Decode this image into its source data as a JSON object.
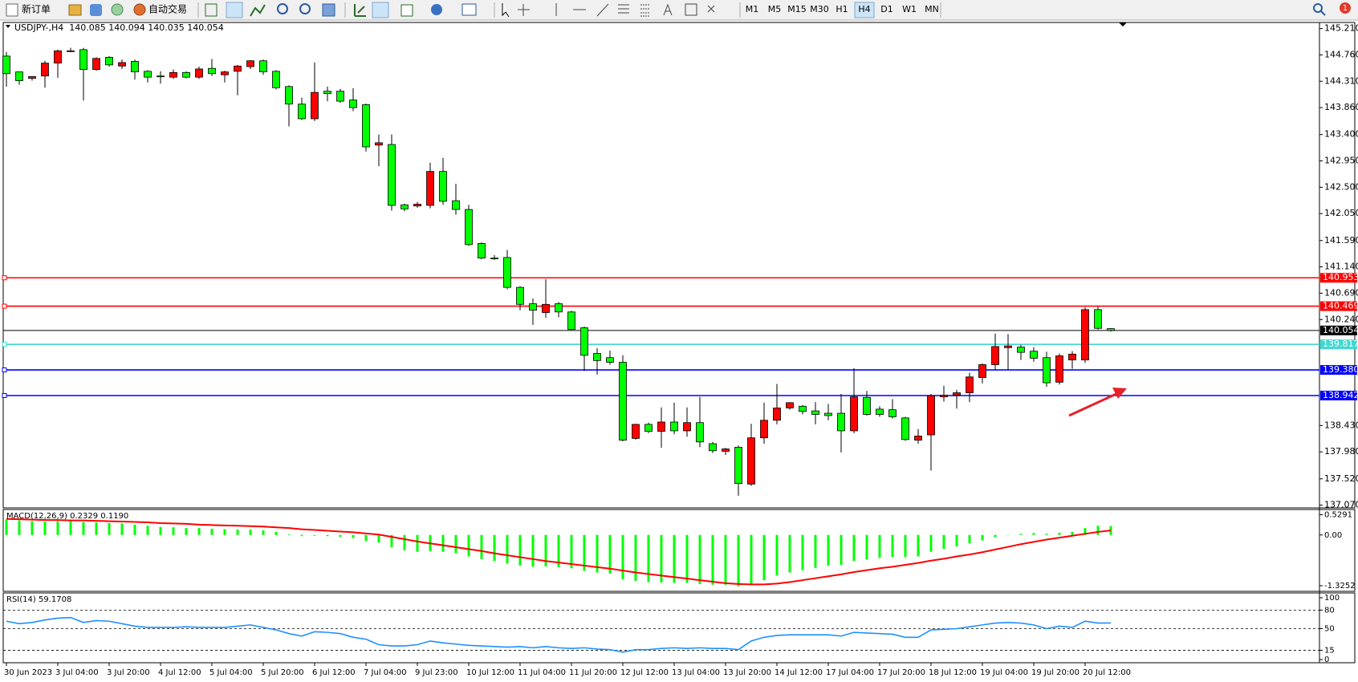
{
  "toolbar": {
    "new_order": "新订单",
    "auto_trading": "自动交易",
    "timeframes": [
      "M1",
      "M5",
      "M15",
      "M30",
      "H1",
      "H4",
      "D1",
      "W1",
      "MN"
    ],
    "active": "H4",
    "notifications": 1
  },
  "chart": {
    "type": "candlestick",
    "header": "USDJPY-,H4  140.085 140.094 140.035 140.054",
    "up_color": "#ff0000",
    "down_color": "#00ff00",
    "ylim": [
      137.07,
      145.21
    ],
    "yticks": [
      {
        "value": 145.21,
        "label": "145.210"
      },
      {
        "value": 144.76,
        "label": "144.760"
      },
      {
        "value": 144.31,
        "label": "144.310"
      },
      {
        "value": 143.86,
        "label": "143.860"
      },
      {
        "value": 143.4,
        "label": "143.400"
      },
      {
        "value": 142.95,
        "label": "142.950"
      },
      {
        "value": 142.5,
        "label": "142.500"
      },
      {
        "value": 142.05,
        "label": "142.050"
      },
      {
        "value": 141.59,
        "label": "141.590"
      },
      {
        "value": 141.14,
        "label": "141.140"
      },
      {
        "value": 140.69,
        "label": "140.690"
      },
      {
        "value": 140.24,
        "label": "140.240"
      },
      {
        "value": 138.43,
        "label": "138.430"
      },
      {
        "value": 137.98,
        "label": "137.980"
      },
      {
        "value": 137.52,
        "label": "137.520"
      },
      {
        "value": 137.07,
        "label": "137.070"
      }
    ],
    "candles": [
      [
        144.74,
        144.81,
        144.22,
        144.44
      ],
      [
        144.47,
        144.47,
        144.25,
        144.32
      ],
      [
        144.36,
        144.4,
        144.32,
        144.39
      ],
      [
        144.4,
        144.66,
        144.2,
        144.62
      ],
      [
        144.62,
        144.85,
        144.37,
        144.83
      ],
      [
        144.82,
        144.88,
        144.81,
        144.83
      ],
      [
        144.85,
        144.88,
        143.98,
        144.51
      ],
      [
        144.51,
        144.72,
        144.49,
        144.7
      ],
      [
        144.72,
        144.74,
        144.56,
        144.59
      ],
      [
        144.57,
        144.68,
        144.52,
        144.63
      ],
      [
        144.65,
        144.68,
        144.34,
        144.47
      ],
      [
        144.48,
        144.5,
        144.29,
        144.38
      ],
      [
        144.4,
        144.48,
        144.27,
        144.39
      ],
      [
        144.38,
        144.51,
        144.35,
        144.46
      ],
      [
        144.46,
        144.48,
        144.36,
        144.38
      ],
      [
        144.38,
        144.56,
        144.35,
        144.52
      ],
      [
        144.53,
        144.69,
        144.4,
        144.44
      ],
      [
        144.42,
        144.49,
        144.29,
        144.47
      ],
      [
        144.48,
        144.59,
        144.07,
        144.57
      ],
      [
        144.56,
        144.67,
        144.52,
        144.66
      ],
      [
        144.66,
        144.68,
        144.42,
        144.47
      ],
      [
        144.48,
        144.5,
        144.17,
        144.2
      ],
      [
        144.22,
        144.24,
        143.54,
        143.92
      ],
      [
        143.92,
        144.03,
        143.65,
        143.67
      ],
      [
        143.67,
        144.63,
        143.63,
        144.12
      ],
      [
        144.14,
        144.22,
        143.97,
        144.1
      ],
      [
        144.14,
        144.18,
        143.94,
        143.97
      ],
      [
        143.99,
        144.19,
        143.8,
        143.86
      ],
      [
        143.91,
        143.93,
        143.11,
        143.19
      ],
      [
        143.22,
        143.4,
        142.86,
        143.26
      ],
      [
        143.23,
        143.4,
        142.1,
        142.19
      ],
      [
        142.2,
        142.22,
        142.09,
        142.13
      ],
      [
        142.18,
        142.25,
        142.15,
        142.21
      ],
      [
        142.19,
        142.92,
        142.14,
        142.77
      ],
      [
        142.77,
        143.0,
        142.2,
        142.26
      ],
      [
        142.27,
        142.56,
        142.03,
        142.12
      ],
      [
        142.12,
        142.2,
        141.5,
        141.52
      ],
      [
        141.54,
        141.56,
        141.27,
        141.29
      ],
      [
        141.29,
        141.34,
        141.26,
        141.28
      ],
      [
        141.3,
        141.43,
        140.76,
        140.79
      ],
      [
        140.79,
        140.81,
        140.4,
        140.5
      ],
      [
        140.51,
        140.6,
        140.15,
        140.4
      ],
      [
        140.36,
        140.93,
        140.27,
        140.5
      ],
      [
        140.51,
        140.54,
        140.28,
        140.37
      ],
      [
        140.37,
        140.39,
        140.06,
        140.07
      ],
      [
        140.1,
        140.12,
        139.36,
        139.63
      ],
      [
        139.66,
        139.75,
        139.3,
        139.54
      ],
      [
        139.59,
        139.71,
        139.47,
        139.51
      ],
      [
        139.51,
        139.63,
        138.16,
        138.18
      ],
      [
        138.21,
        138.46,
        138.19,
        138.45
      ],
      [
        138.45,
        138.48,
        138.3,
        138.33
      ],
      [
        138.33,
        138.74,
        138.05,
        138.49
      ],
      [
        138.49,
        138.82,
        138.28,
        138.34
      ],
      [
        138.34,
        138.74,
        138.24,
        138.48
      ],
      [
        138.48,
        138.92,
        138.06,
        138.15
      ],
      [
        138.12,
        138.15,
        137.96,
        138.0
      ],
      [
        137.99,
        138.05,
        137.93,
        138.03
      ],
      [
        138.06,
        138.09,
        137.23,
        137.44
      ],
      [
        137.43,
        138.46,
        137.4,
        138.22
      ],
      [
        138.22,
        138.82,
        138.12,
        138.52
      ],
      [
        138.52,
        139.14,
        138.45,
        138.73
      ],
      [
        138.73,
        138.83,
        138.7,
        138.82
      ],
      [
        138.76,
        138.78,
        138.62,
        138.67
      ],
      [
        138.68,
        138.83,
        138.45,
        138.62
      ],
      [
        138.64,
        138.8,
        138.52,
        138.6
      ],
      [
        138.64,
        138.97,
        137.97,
        138.34
      ],
      [
        138.34,
        139.41,
        138.3,
        138.92
      ],
      [
        138.91,
        139.02,
        138.6,
        138.62
      ],
      [
        138.71,
        138.76,
        138.58,
        138.62
      ],
      [
        138.7,
        138.88,
        138.55,
        138.58
      ],
      [
        138.56,
        138.58,
        138.17,
        138.19
      ],
      [
        138.18,
        138.37,
        138.12,
        138.25
      ],
      [
        138.27,
        138.97,
        137.66,
        138.94
      ],
      [
        138.92,
        139.11,
        138.84,
        138.95
      ],
      [
        138.95,
        139.04,
        138.72,
        138.99
      ],
      [
        138.99,
        139.33,
        138.83,
        139.26
      ],
      [
        139.25,
        139.49,
        139.15,
        139.47
      ],
      [
        139.47,
        140.0,
        139.38,
        139.78
      ],
      [
        139.76,
        139.99,
        139.38,
        139.79
      ],
      [
        139.77,
        139.81,
        139.55,
        139.68
      ],
      [
        139.7,
        139.77,
        139.52,
        139.58
      ],
      [
        139.59,
        139.69,
        139.09,
        139.16
      ],
      [
        139.17,
        139.66,
        139.13,
        139.62
      ],
      [
        139.55,
        139.7,
        139.4,
        139.65
      ],
      [
        139.55,
        140.45,
        139.5,
        140.41
      ],
      [
        140.41,
        140.46,
        140.07,
        140.09
      ],
      [
        140.085,
        140.094,
        140.035,
        140.054
      ]
    ],
    "levels": [
      {
        "value": 140.953,
        "color": "#ff0000"
      },
      {
        "value": 140.469,
        "color": "#ff0000"
      },
      {
        "value": 140.054,
        "color": "#000000"
      },
      {
        "value": 139.817,
        "color": "#40d8d0"
      },
      {
        "value": 139.38,
        "label": "139.380",
        "color": "#0000ff"
      },
      {
        "value": 138.942,
        "color": "#0000ff"
      }
    ],
    "x_labels": [
      "30 Jun 2023",
      "3 Jul 04:00",
      "3 Jul 20:00",
      "4 Jul 12:00",
      "5 Jul 04:00",
      "5 Jul 20:00",
      "6 Jul 12:00",
      "7 Jul 04:00",
      "9 Jul 23:00",
      "10 Jul 12:00",
      "11 Jul 04:00",
      "11 Jul 20:00",
      "12 Jul 12:00",
      "13 Jul 04:00",
      "13 Jul 20:00",
      "14 Jul 12:00",
      "17 Jul 04:00",
      "17 Jul 20:00",
      "18 Jul 12:00",
      "19 Jul 04:00",
      "19 Jul 20:00",
      "20 Jul 12:00"
    ],
    "macd": {
      "title": "MACD(12,26,9) 0.2329 0.1190",
      "ylim": [
        -1.3252,
        0.5291
      ],
      "yticks": [
        0.5291,
        {
          "value": 0,
          "label": "0.00"
        },
        -1.3252
      ],
      "histogram": {
        "color": "#00ff00",
        "values": [
          0.4,
          0.38,
          0.36,
          0.35,
          0.36,
          0.37,
          0.34,
          0.33,
          0.31,
          0.3,
          0.27,
          0.24,
          0.21,
          0.2,
          0.18,
          0.18,
          0.16,
          0.15,
          0.14,
          0.14,
          0.12,
          0.08,
          0.02,
          -0.03,
          -0.02,
          -0.03,
          -0.05,
          -0.08,
          -0.16,
          -0.2,
          -0.32,
          -0.4,
          -0.44,
          -0.42,
          -0.44,
          -0.48,
          -0.56,
          -0.63,
          -0.68,
          -0.75,
          -0.8,
          -0.83,
          -0.82,
          -0.84,
          -0.87,
          -0.94,
          -0.98,
          -1.01,
          -1.16,
          -1.2,
          -1.23,
          -1.24,
          -1.25,
          -1.25,
          -1.28,
          -1.3,
          -1.3,
          -1.34,
          -1.28,
          -1.18,
          -1.06,
          -0.98,
          -0.92,
          -0.86,
          -0.8,
          -0.78,
          -0.68,
          -0.64,
          -0.6,
          -0.58,
          -0.58,
          -0.56,
          -0.44,
          -0.36,
          -0.3,
          -0.22,
          -0.14,
          -0.06,
          0.0,
          0.03,
          0.05,
          0.03,
          0.06,
          0.08,
          0.18,
          0.24,
          0.2329
        ]
      },
      "signal": {
        "color": "#ff0000",
        "values": [
          0.42,
          0.41,
          0.4,
          0.39,
          0.39,
          0.38,
          0.38,
          0.37,
          0.36,
          0.35,
          0.34,
          0.33,
          0.31,
          0.3,
          0.29,
          0.27,
          0.26,
          0.25,
          0.24,
          0.23,
          0.22,
          0.2,
          0.18,
          0.15,
          0.13,
          0.11,
          0.09,
          0.07,
          0.04,
          0.01,
          -0.05,
          -0.11,
          -0.17,
          -0.22,
          -0.27,
          -0.32,
          -0.37,
          -0.42,
          -0.48,
          -0.53,
          -0.58,
          -0.63,
          -0.68,
          -0.72,
          -0.76,
          -0.8,
          -0.84,
          -0.88,
          -0.93,
          -0.98,
          -1.02,
          -1.06,
          -1.1,
          -1.14,
          -1.18,
          -1.22,
          -1.26,
          -1.28,
          -1.29,
          -1.29,
          -1.27,
          -1.23,
          -1.18,
          -1.13,
          -1.08,
          -1.03,
          -0.97,
          -0.92,
          -0.87,
          -0.83,
          -0.78,
          -0.73,
          -0.67,
          -0.62,
          -0.56,
          -0.51,
          -0.45,
          -0.38,
          -0.31,
          -0.24,
          -0.18,
          -0.12,
          -0.07,
          -0.02,
          0.03,
          0.08,
          0.119
        ]
      }
    },
    "rsi": {
      "title": "RSI(14) 59.1708",
      "ylim": [
        0,
        100
      ],
      "yticks": [
        100,
        80,
        50,
        15,
        0
      ],
      "color": "#1e90ff",
      "values": [
        62,
        58,
        60,
        64,
        67,
        68,
        60,
        63,
        62,
        58,
        54,
        52,
        52,
        52,
        53,
        52,
        52,
        52,
        54,
        56,
        52,
        48,
        42,
        38,
        45,
        44,
        42,
        36,
        33,
        24,
        22,
        22,
        24,
        30,
        27,
        25,
        23,
        22,
        21,
        20,
        21,
        19,
        21,
        19,
        18,
        19,
        17,
        16,
        12,
        16,
        16,
        18,
        19,
        18,
        19,
        18,
        18,
        16,
        30,
        36,
        39,
        40,
        40,
        40,
        40,
        38,
        44,
        43,
        42,
        41,
        36,
        36,
        48,
        49,
        50,
        53,
        56,
        59,
        60,
        59,
        56,
        50,
        54,
        52,
        62,
        59,
        59.1708
      ]
    }
  }
}
